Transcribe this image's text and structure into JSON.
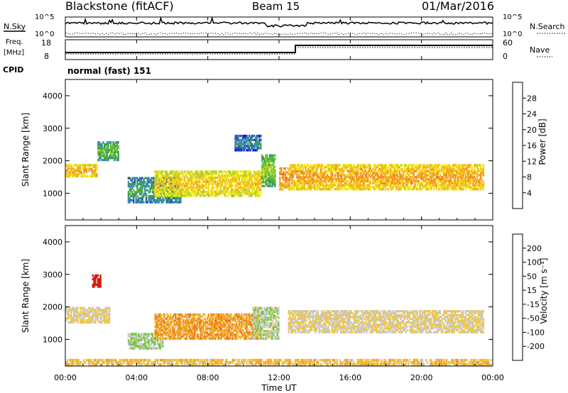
{
  "header": {
    "station": "Blackstone (fitACF)",
    "beam": "Beam 15",
    "date": "01/Mar/2016"
  },
  "panels": {
    "noise": {
      "left_label": "N.Sky",
      "left_ticks": [
        "10^5",
        "10^0"
      ],
      "right_ticks": [
        "10^5",
        "10^0"
      ],
      "right_label": "N.Search"
    },
    "freq": {
      "left_label_1": "Freq.",
      "left_label_2": "[MHz]",
      "left_ticks": [
        "18",
        "8"
      ],
      "right_ticks": [
        "60",
        "0"
      ],
      "right_label": "Nave"
    },
    "cpid": {
      "label": "CPID",
      "text": "normal (fast) 151"
    }
  },
  "time_axis": {
    "label": "Time UT",
    "ticks": [
      "00:00",
      "04:00",
      "08:00",
      "12:00",
      "16:00",
      "20:00",
      "00:00"
    ]
  },
  "range_axis": {
    "label": "Slant Range [km]",
    "ticks": [
      "1000",
      "2000",
      "3000",
      "4000"
    ]
  },
  "power_scale": {
    "label": "Power [dB]",
    "ticks": [
      "4",
      "8",
      "12",
      "16",
      "20",
      "24",
      "28"
    ],
    "colors": [
      "#1414e6",
      "#2850b4",
      "#3c8cb4",
      "#3ca050",
      "#64be3c",
      "#b4d228",
      "#f0e614",
      "#f5b41e",
      "#f08c28",
      "#f05a1e",
      "#e61e14"
    ]
  },
  "velocity_scale": {
    "label": "Velocity [m s⁻¹]",
    "ticks": [
      "200",
      "100",
      "50",
      "15",
      "-15",
      "-50",
      "-100",
      "-200"
    ],
    "colors": [
      "#2040b0",
      "#3c78c8",
      "#3ca050",
      "#78c83c",
      "#c8c8c8",
      "#f0c846",
      "#f0a028",
      "#f07814",
      "#e63c14",
      "#d21e14"
    ]
  },
  "chart_data": [
    {
      "type": "heatmap",
      "title": "Power",
      "xlabel": "Time UT",
      "ylabel": "Slant Range [km]",
      "x_range_hours": [
        0,
        24
      ],
      "ylim": [
        180,
        4500
      ],
      "colorbar": {
        "label": "Power [dB]",
        "range": [
          0,
          30
        ]
      },
      "bands": [
        {
          "t": [
            0.0,
            1.8
          ],
          "r": [
            1500,
            1900
          ],
          "value": 22
        },
        {
          "t": [
            1.8,
            3.0
          ],
          "r": [
            2000,
            2600
          ],
          "value": 12
        },
        {
          "t": [
            3.5,
            6.5
          ],
          "r": [
            700,
            1500
          ],
          "value": 10
        },
        {
          "t": [
            5.0,
            11.0
          ],
          "r": [
            900,
            1700
          ],
          "value": 20
        },
        {
          "t": [
            11.0,
            11.8
          ],
          "r": [
            1200,
            2200
          ],
          "value": 14
        },
        {
          "t": [
            12.0,
            12.6
          ],
          "r": [
            1100,
            1800
          ],
          "value": 24
        },
        {
          "t": [
            12.6,
            23.5
          ],
          "r": [
            1100,
            1900
          ],
          "value": 22
        },
        {
          "t": [
            9.5,
            11.0
          ],
          "r": [
            2300,
            2800
          ],
          "value": 8
        }
      ]
    },
    {
      "type": "heatmap",
      "title": "Velocity",
      "xlabel": "Time UT",
      "ylabel": "Slant Range [km]",
      "x_range_hours": [
        0,
        24
      ],
      "ylim": [
        180,
        4500
      ],
      "colorbar": {
        "label": "Velocity [m s⁻¹]",
        "range": [
          -200,
          200
        ]
      },
      "bands": [
        {
          "t": [
            0.0,
            2.5
          ],
          "r": [
            1500,
            2000
          ],
          "value": 0
        },
        {
          "t": [
            1.5,
            2.0
          ],
          "r": [
            2600,
            3000
          ],
          "value": -200
        },
        {
          "t": [
            3.5,
            5.5
          ],
          "r": [
            700,
            1200
          ],
          "value": 40
        },
        {
          "t": [
            5.0,
            11.0
          ],
          "r": [
            1000,
            1800
          ],
          "value": -60
        },
        {
          "t": [
            10.5,
            12.0
          ],
          "r": [
            1000,
            2000
          ],
          "value": 30
        },
        {
          "t": [
            12.5,
            23.5
          ],
          "r": [
            1200,
            1900
          ],
          "value": 0
        },
        {
          "t": [
            0.0,
            24.0
          ],
          "r": [
            200,
            400
          ],
          "value": -30
        }
      ]
    }
  ]
}
